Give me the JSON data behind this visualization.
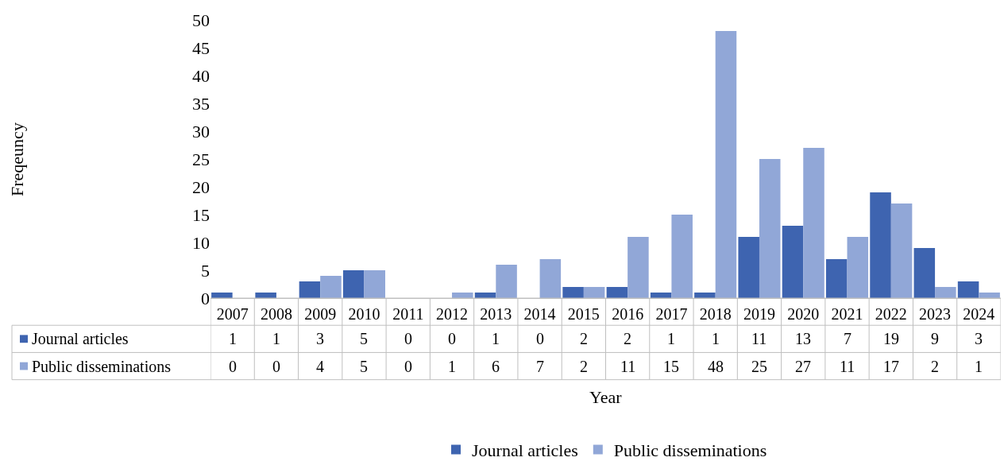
{
  "chart_data": {
    "type": "bar",
    "xlabel": "Year",
    "annotations": [
      "Freqeuncy"
    ],
    "categories": [
      "2007",
      "2008",
      "2009",
      "2010",
      "2011",
      "2012",
      "2013",
      "2014",
      "2015",
      "2016",
      "2017",
      "2018",
      "2019",
      "2020",
      "2021",
      "2022",
      "2023",
      "2024"
    ],
    "series": [
      {
        "name": "Journal articles",
        "color": "#3e64b0",
        "values": [
          1,
          1,
          3,
          5,
          0,
          0,
          1,
          0,
          2,
          2,
          1,
          1,
          11,
          13,
          7,
          19,
          9,
          3
        ]
      },
      {
        "name": "Public disseminations",
        "color": "#91a7d7",
        "values": [
          0,
          0,
          4,
          5,
          0,
          1,
          6,
          7,
          2,
          11,
          15,
          48,
          25,
          27,
          11,
          17,
          2,
          1
        ]
      }
    ],
    "ylim": [
      0,
      50
    ],
    "yticks": [
      0,
      5,
      10,
      15,
      20,
      25,
      30,
      35,
      40,
      45,
      50
    ],
    "legend": "bottom",
    "data_labels": true
  }
}
